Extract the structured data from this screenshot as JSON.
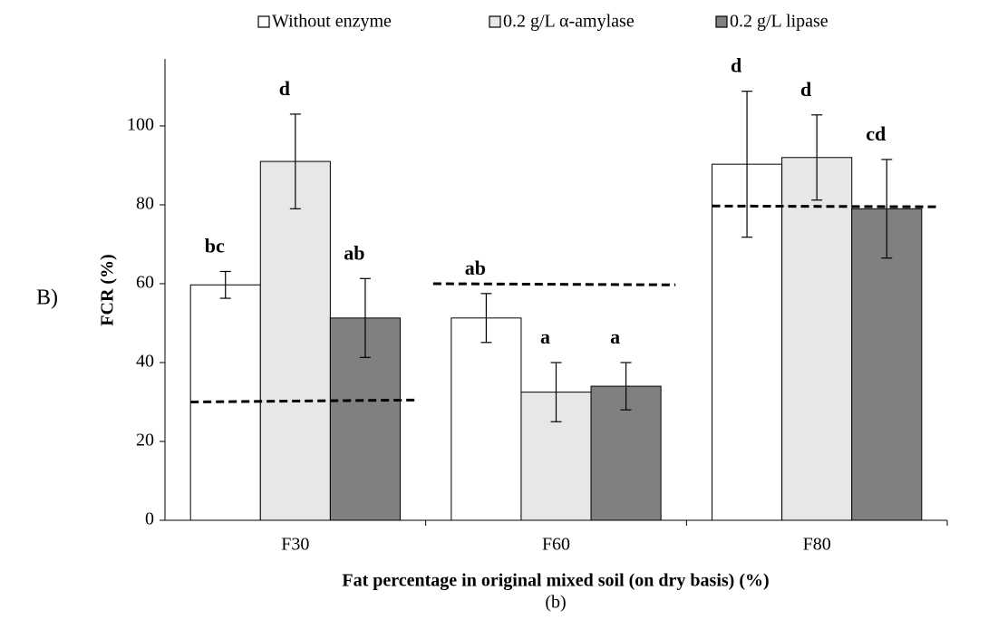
{
  "chart_data": {
    "type": "bar",
    "panel_label": "B)",
    "caption": "(b)",
    "x_label": "Fat percentage in original mixed soil (on dry basis) (%)",
    "y_label": "FCR (%)",
    "categories": [
      "F30",
      "F60",
      "F80"
    ],
    "series": [
      {
        "name": "Without enzyme",
        "color": "#ffffff",
        "values": [
          59.7,
          51.3,
          90.3
        ],
        "errors": [
          3.4,
          6.2,
          18.5
        ],
        "labels": [
          "bc",
          "ab",
          "d"
        ]
      },
      {
        "name": "0.2 g/L α-amylase",
        "color": "#e7e7e7",
        "values": [
          91,
          32.5,
          92
        ],
        "errors": [
          12,
          7.5,
          10.8
        ],
        "labels": [
          "d",
          "a",
          "d"
        ]
      },
      {
        "name": "0.2 g/L lipase",
        "color": "#808080",
        "values": [
          51.3,
          34,
          79
        ],
        "errors": [
          10,
          6,
          12.5
        ],
        "labels": [
          "ab",
          "a",
          "cd"
        ]
      }
    ],
    "reference_lines": [
      {
        "values": [
          30,
          30.5
        ]
      },
      {
        "values": [
          60,
          59.7
        ]
      },
      {
        "values": [
          79.7,
          79.5
        ]
      }
    ],
    "ylim": [
      0,
      117
    ],
    "yticks": [
      0,
      20,
      40,
      60,
      80,
      100
    ],
    "legend": "top"
  }
}
